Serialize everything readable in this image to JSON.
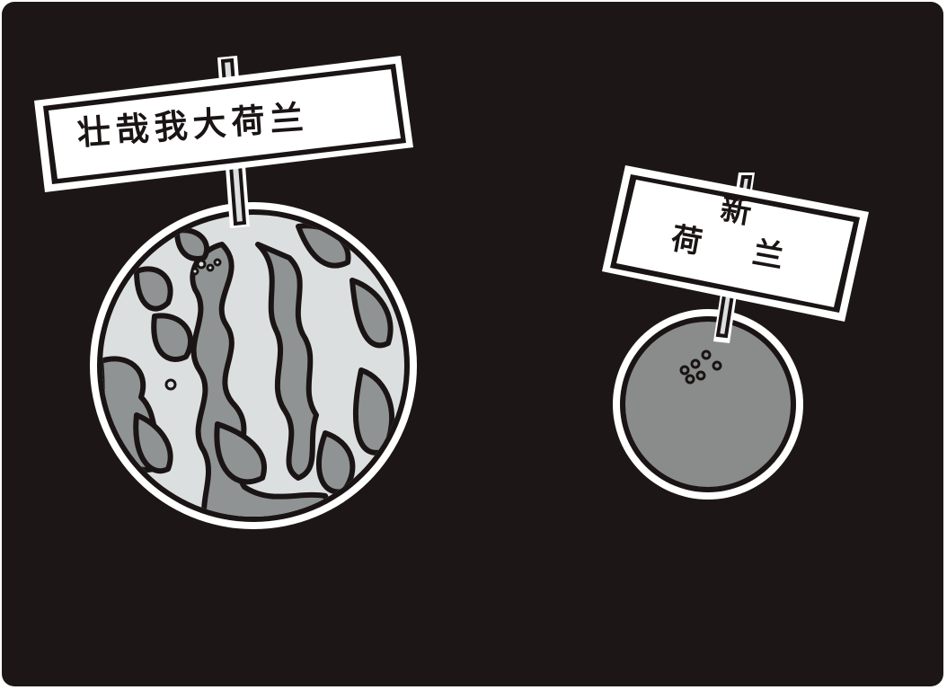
{
  "scene": {
    "background_color": "#1d1616",
    "big_planet": {
      "sign_text": "壮哉我大荷兰",
      "land_color": "#dcdfdf",
      "sea_color": "#8f9393"
    },
    "small_planet": {
      "sign_line1": "新",
      "sign_line2": "荷兰",
      "color": "#8a8c8c"
    },
    "outline_color": "#1a1414",
    "rim_color": "#ffffff"
  }
}
